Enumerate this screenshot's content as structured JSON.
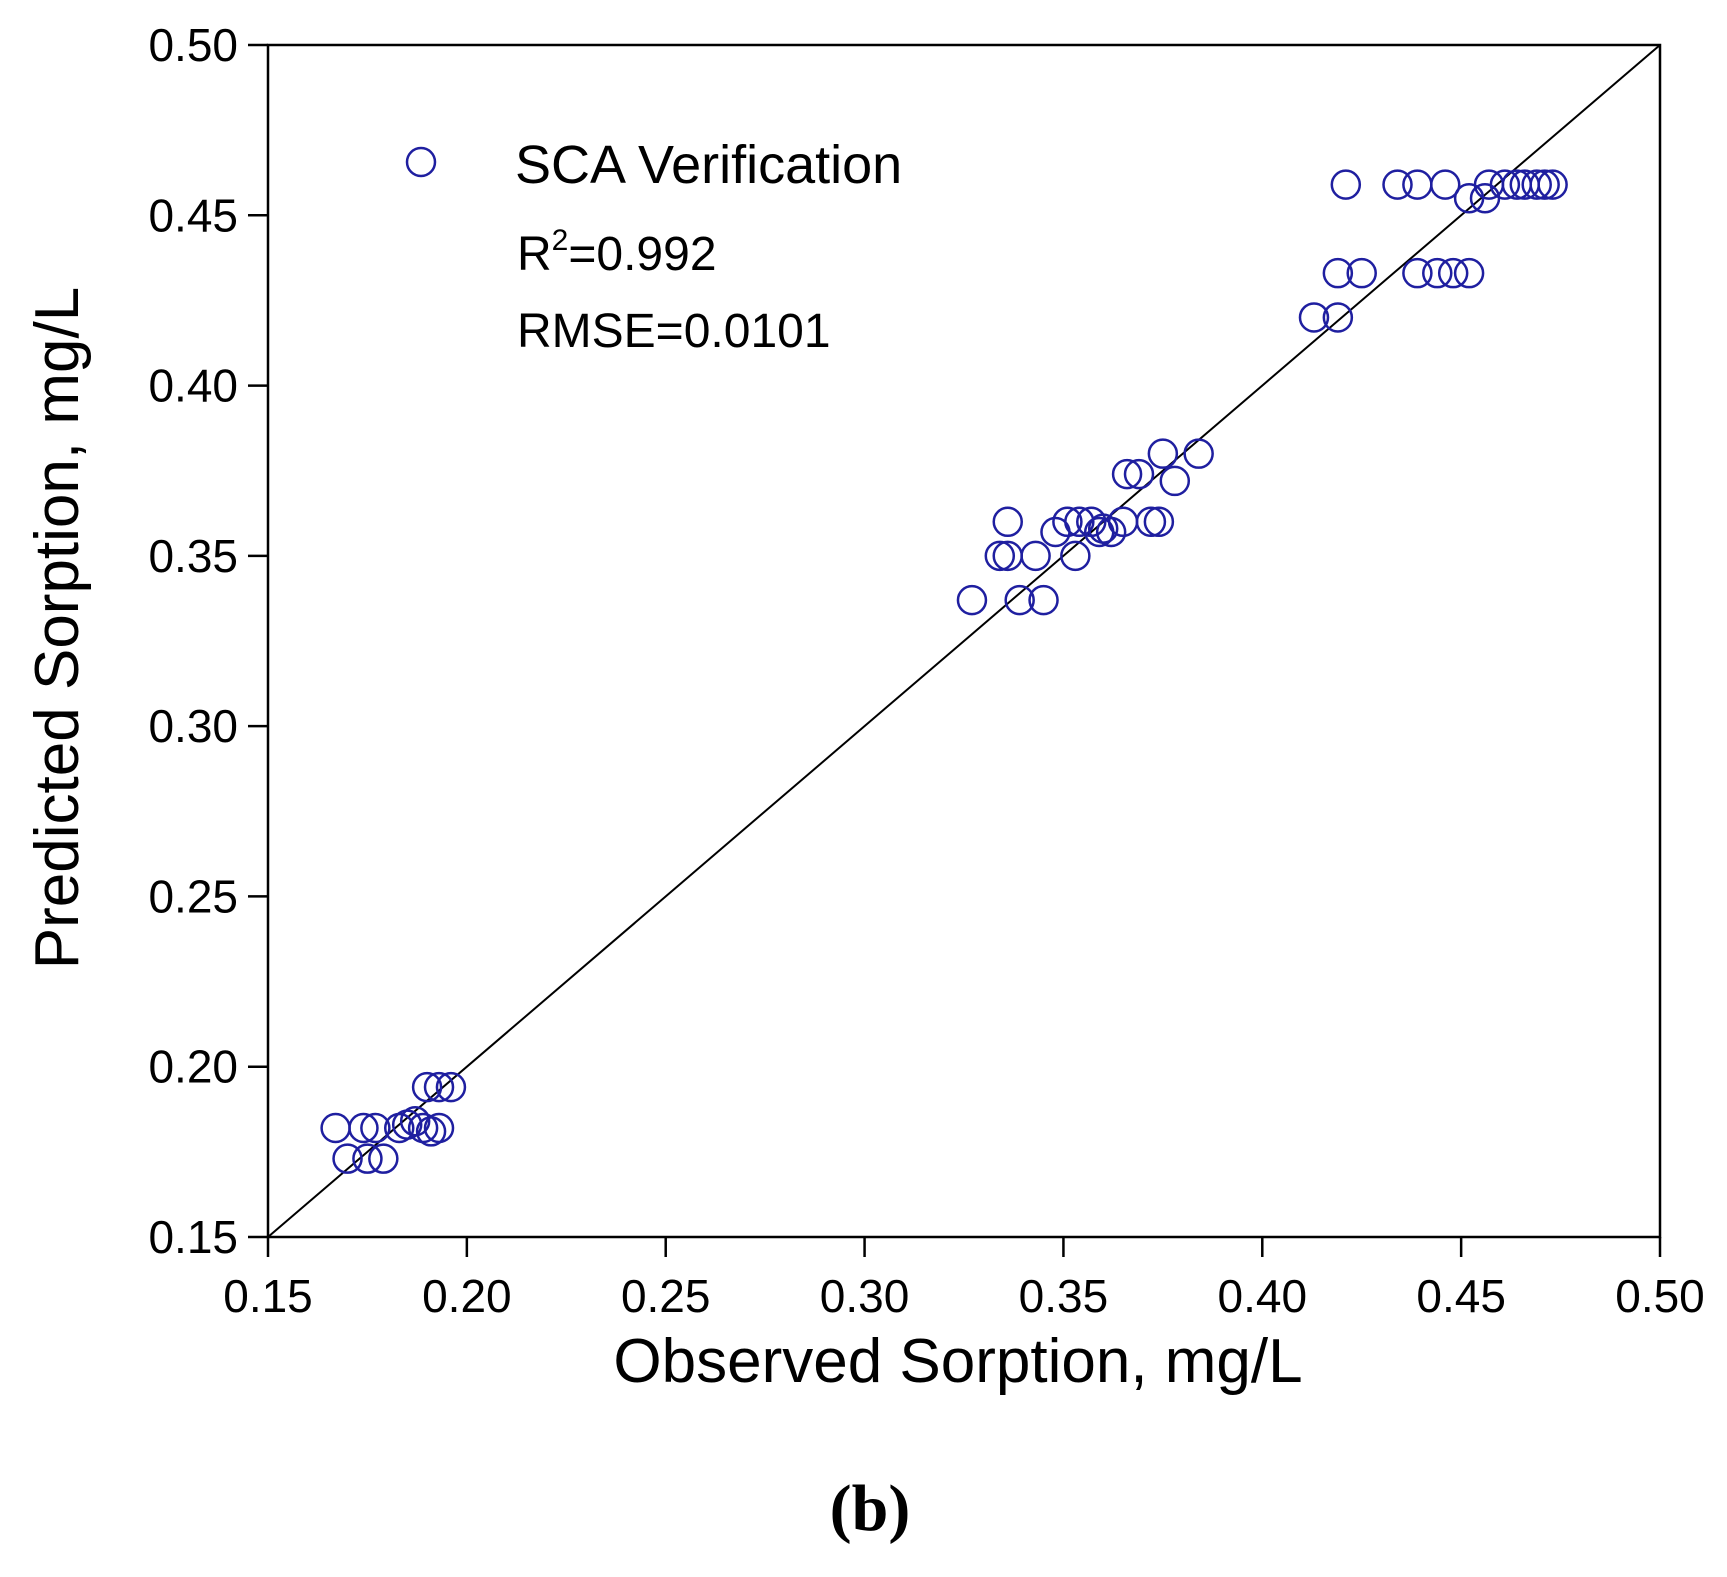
{
  "chart_data": {
    "type": "scatter",
    "title": "",
    "xlabel": "Observed Sorption, mg/L",
    "ylabel": "Predicted Sorption, mg/L",
    "xlim": [
      0.15,
      0.5
    ],
    "ylim": [
      0.15,
      0.5
    ],
    "xticks": [
      "0.15",
      "0.20",
      "0.25",
      "0.30",
      "0.35",
      "0.40",
      "0.45",
      "0.50"
    ],
    "yticks": [
      "0.15",
      "0.20",
      "0.25",
      "0.30",
      "0.35",
      "0.40",
      "0.45",
      "0.50"
    ],
    "grid": false,
    "legend_position": "top-left",
    "reference_line": {
      "type": "1:1",
      "from": [
        0.15,
        0.15
      ],
      "to": [
        0.5,
        0.5
      ]
    },
    "panel_label": "(b)",
    "series": [
      {
        "name": "SCA Verification",
        "marker": "open-circle",
        "color": "#1f1fa0",
        "stats": {
          "r2_prefix": "R",
          "r2_sup": "2",
          "r2_value": "=0.992",
          "rmse": "RMSE=0.0101"
        },
        "points": [
          [
            0.167,
            0.182
          ],
          [
            0.174,
            0.182
          ],
          [
            0.177,
            0.182
          ],
          [
            0.17,
            0.173
          ],
          [
            0.175,
            0.173
          ],
          [
            0.179,
            0.173
          ],
          [
            0.183,
            0.182
          ],
          [
            0.185,
            0.183
          ],
          [
            0.187,
            0.184
          ],
          [
            0.189,
            0.182
          ],
          [
            0.191,
            0.181
          ],
          [
            0.193,
            0.182
          ],
          [
            0.19,
            0.194
          ],
          [
            0.193,
            0.194
          ],
          [
            0.196,
            0.194
          ],
          [
            0.327,
            0.337
          ],
          [
            0.339,
            0.337
          ],
          [
            0.345,
            0.337
          ],
          [
            0.334,
            0.35
          ],
          [
            0.336,
            0.35
          ],
          [
            0.343,
            0.35
          ],
          [
            0.353,
            0.35
          ],
          [
            0.336,
            0.36
          ],
          [
            0.348,
            0.357
          ],
          [
            0.351,
            0.36
          ],
          [
            0.354,
            0.36
          ],
          [
            0.357,
            0.36
          ],
          [
            0.359,
            0.357
          ],
          [
            0.36,
            0.358
          ],
          [
            0.362,
            0.357
          ],
          [
            0.365,
            0.36
          ],
          [
            0.366,
            0.374
          ],
          [
            0.369,
            0.374
          ],
          [
            0.372,
            0.36
          ],
          [
            0.374,
            0.36
          ],
          [
            0.375,
            0.38
          ],
          [
            0.378,
            0.372
          ],
          [
            0.384,
            0.38
          ],
          [
            0.413,
            0.42
          ],
          [
            0.419,
            0.42
          ],
          [
            0.419,
            0.433
          ],
          [
            0.425,
            0.433
          ],
          [
            0.421,
            0.459
          ],
          [
            0.434,
            0.459
          ],
          [
            0.439,
            0.459
          ],
          [
            0.446,
            0.459
          ],
          [
            0.439,
            0.433
          ],
          [
            0.444,
            0.433
          ],
          [
            0.448,
            0.433
          ],
          [
            0.452,
            0.433
          ],
          [
            0.452,
            0.455
          ],
          [
            0.456,
            0.455
          ],
          [
            0.457,
            0.459
          ],
          [
            0.461,
            0.459
          ],
          [
            0.464,
            0.459
          ],
          [
            0.466,
            0.459
          ],
          [
            0.469,
            0.459
          ],
          [
            0.471,
            0.459
          ],
          [
            0.473,
            0.459
          ]
        ]
      }
    ]
  }
}
